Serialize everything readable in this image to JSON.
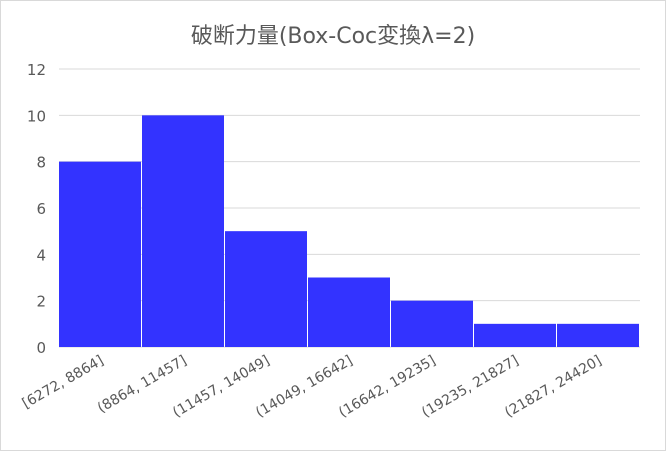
{
  "chart_data": {
    "type": "bar",
    "title": "破断力量(Box-Coc変換λ=2)",
    "categories": [
      "[6272, 8864]",
      "(8864, 11457]",
      "(11457, 14049]",
      "(14049, 16642]",
      "(16642, 19235]",
      "(19235, 21827]",
      "(21827, 24420]"
    ],
    "values": [
      8,
      10,
      5,
      3,
      2,
      1,
      1
    ],
    "xlabel": "",
    "ylabel": "",
    "ylim": [
      0,
      12
    ],
    "yticks": [
      0,
      2,
      4,
      6,
      8,
      10,
      12
    ],
    "grid": true,
    "legend": "none",
    "bar_color": "#3333FF",
    "gridline_color": "#d9d9d9"
  }
}
